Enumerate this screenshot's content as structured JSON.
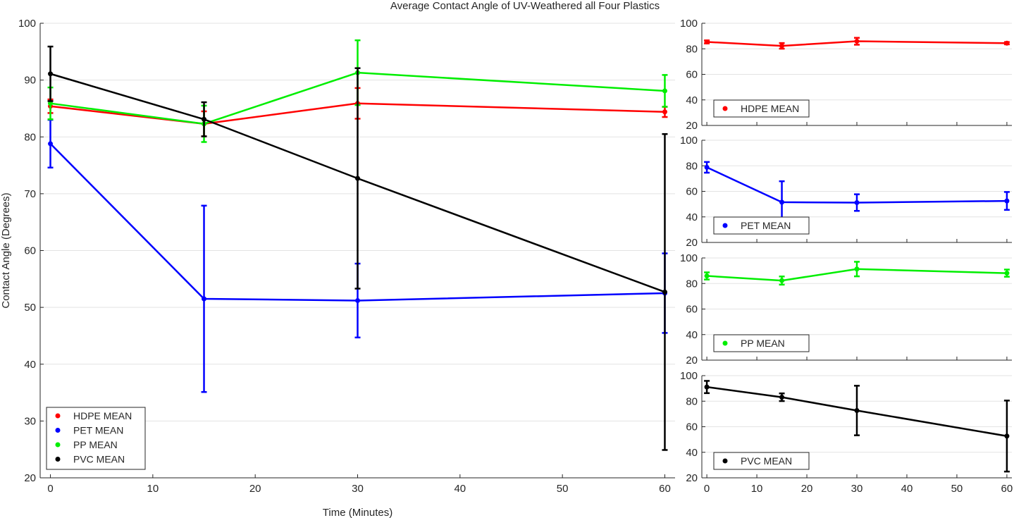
{
  "figure": {
    "title": "Average Contact Angle of UV-Weathered all Four Plastics"
  },
  "chart_data": [
    {
      "type": "line",
      "panel": "main",
      "xlabel": "Time (Minutes)",
      "ylabel": "Contact Angle (Degrees)",
      "xlim": [
        -1,
        61
      ],
      "ylim": [
        20,
        100
      ],
      "xticks": [
        0,
        10,
        20,
        30,
        40,
        50,
        60
      ],
      "yticks": [
        20,
        30,
        40,
        50,
        60,
        70,
        80,
        90,
        100
      ],
      "grid": "horizontal",
      "legend_position": "bottom-left",
      "x": [
        0,
        15,
        30,
        60
      ],
      "series": [
        {
          "name": "HDPE MEAN",
          "color": "#ff0000",
          "values": [
            85.4,
            82.3,
            85.9,
            84.4
          ],
          "err": [
            1.2,
            2.2,
            2.7,
            0.9
          ]
        },
        {
          "name": "PET MEAN",
          "color": "#0000ff",
          "values": [
            78.8,
            51.5,
            51.2,
            52.5
          ],
          "err": [
            4.2,
            16.4,
            6.5,
            7.0
          ]
        },
        {
          "name": "PP MEAN",
          "color": "#00ee00",
          "values": [
            85.9,
            82.3,
            91.3,
            88.1
          ],
          "err": [
            2.8,
            3.2,
            5.7,
            2.8
          ]
        },
        {
          "name": "PVC MEAN",
          "color": "#000000",
          "values": [
            91.1,
            83.1,
            72.7,
            52.7
          ],
          "err": [
            4.8,
            3.0,
            19.4,
            27.8
          ]
        }
      ]
    },
    {
      "type": "line",
      "panel": "small-1",
      "xlim": [
        -1,
        61
      ],
      "ylim": [
        20,
        100
      ],
      "xticks": [
        0,
        10,
        20,
        30,
        40,
        50,
        60
      ],
      "yticks": [
        20,
        40,
        60,
        80,
        100
      ],
      "show_xtick_labels": false,
      "legend_position": "bottom-left",
      "x": [
        0,
        15,
        30,
        60
      ],
      "series": [
        {
          "name": "HDPE MEAN",
          "color": "#ff0000",
          "values": [
            85.4,
            82.3,
            85.9,
            84.4
          ],
          "err": [
            1.2,
            2.2,
            2.7,
            0.9
          ]
        }
      ]
    },
    {
      "type": "line",
      "panel": "small-2",
      "xlim": [
        -1,
        61
      ],
      "ylim": [
        20,
        100
      ],
      "xticks": [
        0,
        10,
        20,
        30,
        40,
        50,
        60
      ],
      "yticks": [
        20,
        40,
        60,
        80,
        100
      ],
      "show_xtick_labels": false,
      "legend_position": "bottom-left",
      "x": [
        0,
        15,
        30,
        60
      ],
      "series": [
        {
          "name": "PET MEAN",
          "color": "#0000ff",
          "values": [
            78.8,
            51.5,
            51.2,
            52.5
          ],
          "err": [
            4.2,
            16.4,
            6.5,
            7.0
          ]
        }
      ]
    },
    {
      "type": "line",
      "panel": "small-3",
      "xlim": [
        -1,
        61
      ],
      "ylim": [
        20,
        100
      ],
      "xticks": [
        0,
        10,
        20,
        30,
        40,
        50,
        60
      ],
      "yticks": [
        20,
        40,
        60,
        80,
        100
      ],
      "show_xtick_labels": false,
      "legend_position": "bottom-left",
      "x": [
        0,
        15,
        30,
        60
      ],
      "series": [
        {
          "name": "PP MEAN",
          "color": "#00ee00",
          "values": [
            85.9,
            82.3,
            91.3,
            88.1
          ],
          "err": [
            2.8,
            3.2,
            5.7,
            2.8
          ]
        }
      ]
    },
    {
      "type": "line",
      "panel": "small-4",
      "xlim": [
        -1,
        61
      ],
      "ylim": [
        20,
        100
      ],
      "xticks": [
        0,
        10,
        20,
        30,
        40,
        50,
        60
      ],
      "yticks": [
        20,
        40,
        60,
        80,
        100
      ],
      "show_xtick_labels": true,
      "legend_position": "bottom-left",
      "x": [
        0,
        15,
        30,
        60
      ],
      "series": [
        {
          "name": "PVC MEAN",
          "color": "#000000",
          "values": [
            91.1,
            83.1,
            72.7,
            52.7
          ],
          "err": [
            4.8,
            3.0,
            19.4,
            27.8
          ]
        }
      ]
    }
  ]
}
